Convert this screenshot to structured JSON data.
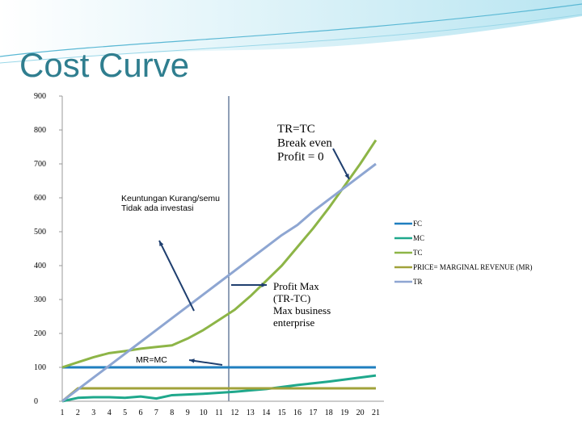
{
  "page_title": "Cost Curve",
  "chart_data": {
    "type": "line",
    "categories": [
      1,
      2,
      3,
      4,
      5,
      6,
      7,
      8,
      9,
      10,
      11,
      12,
      13,
      14,
      15,
      16,
      17,
      18,
      19,
      20,
      21
    ],
    "series": [
      {
        "name": "FC",
        "color": "#1f7fbf",
        "values": [
          100,
          100,
          100,
          100,
          100,
          100,
          100,
          100,
          100,
          100,
          100,
          100,
          100,
          100,
          100,
          100,
          100,
          100,
          100,
          100,
          100
        ]
      },
      {
        "name": "MC",
        "color": "#1fa88c",
        "values": [
          0,
          10,
          12,
          12,
          10,
          14,
          8,
          18,
          20,
          22,
          25,
          28,
          32,
          36,
          42,
          48,
          53,
          58,
          64,
          70,
          76
        ]
      },
      {
        "name": "TC",
        "color": "#8db547",
        "values": [
          100,
          115,
          130,
          142,
          148,
          155,
          160,
          165,
          185,
          210,
          240,
          270,
          310,
          355,
          400,
          455,
          510,
          570,
          635,
          700,
          770
        ]
      },
      {
        "name": "PRICE= MARGINAL REVENUE (MR)",
        "color": "#a0a23a",
        "values": [
          0,
          38,
          38,
          38,
          38,
          38,
          38,
          38,
          38,
          38,
          38,
          38,
          38,
          38,
          38,
          38,
          38,
          38,
          38,
          38,
          38
        ]
      },
      {
        "name": "TR",
        "color": "#8ea6d2",
        "values": [
          0,
          35,
          70,
          105,
          140,
          175,
          210,
          245,
          280,
          315,
          350,
          385,
          420,
          455,
          490,
          520,
          560,
          595,
          630,
          665,
          700
        ]
      }
    ],
    "ylim": [
      0,
      900
    ],
    "yticks": [
      0,
      100,
      200,
      300,
      400,
      500,
      600,
      700,
      800,
      900
    ],
    "annotations": [
      {
        "lines": [
          "TR=TC",
          "Break even",
          "Profit = 0"
        ]
      },
      {
        "lines": [
          "Keuntungan Kurang/semu",
          "Tidak ada investasi"
        ]
      },
      {
        "lines": [
          "Profit Max",
          "(TR-TC)",
          "Max business",
          "enterprise"
        ]
      },
      {
        "lines": [
          "MR=MC"
        ]
      }
    ]
  }
}
